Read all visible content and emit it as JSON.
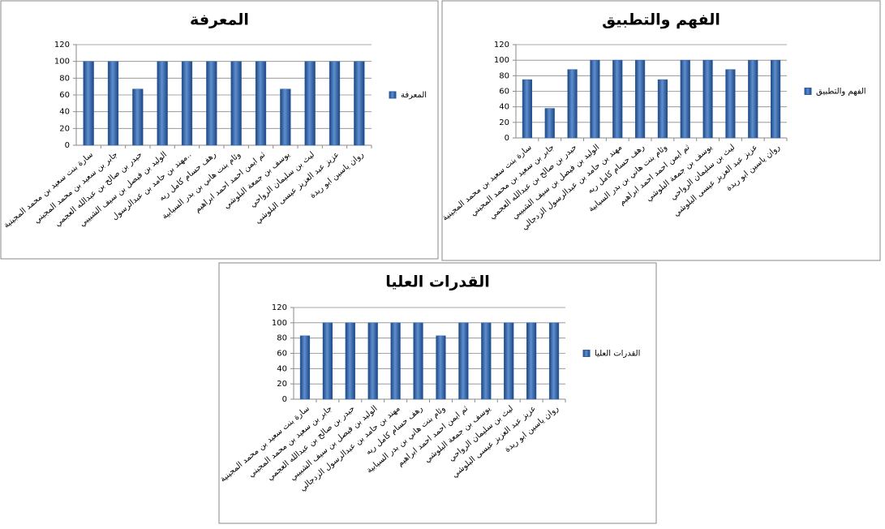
{
  "chart_data": [
    {
      "type": "bar",
      "title": "المعرفة",
      "categories": [
        "سارة بنت سعيد بن محمد المجينية",
        "جابر بن سعيد بن محمد المجيني",
        "حيدر بن صالح بن عبدالله العجمي",
        "الوليد بن فيصل بن سيف الشبيبي",
        "مهند بن حامد بن عبدالرسول..",
        "رهف حسام كامل ريه",
        "وئام بنت هاني بن بدر السيابية",
        "ثم ايمن احمد احمد ابراهيم",
        "يوسف بن جمعة البلوشي",
        "ليث بن سليمان الرواحي",
        "عزيز عبد العزيز عيسى البلوشي",
        "روان ياسين ابو ريدة"
      ],
      "series": [
        {
          "name": "المعرفة",
          "color": "#2a5ea8",
          "values": [
            100,
            100,
            67,
            100,
            100,
            100,
            100,
            100,
            67,
            100,
            100,
            100
          ]
        }
      ],
      "ylim": [
        0,
        120
      ],
      "yticks": [
        0,
        20,
        40,
        60,
        80,
        100,
        120
      ],
      "grid": true,
      "legend": "right"
    },
    {
      "type": "bar",
      "title": "الفهم والتطبيق",
      "categories": [
        "سارة بنت سعيد بن محمد المجينية",
        "جابر بن سعيد بن محمد المجيني",
        "حيدر بن صالح بن عبدالله العجمي",
        "الوليد بن فيصل بن سيف الشبيبي",
        "مهند بن حامد بن عبدالرسول الزدجالي",
        "رهف حسام كامل ريه",
        "وئام بنت هاني بن بدر السيابية",
        "ثم ايمن احمد احمد ابراهيم",
        "يوسف بن جمعة البلوشي",
        "ليث بن سليمان الرواحي",
        "عزيز عبد العزيز عيسى البلوشي",
        "روان ياسين ابو ريدة"
      ],
      "series": [
        {
          "name": "الفهم والتطبيق",
          "color": "#2a5ea8",
          "values": [
            75,
            38,
            88,
            100,
            100,
            100,
            75,
            100,
            100,
            88,
            100,
            100
          ]
        }
      ],
      "ylim": [
        0,
        120
      ],
      "yticks": [
        0,
        20,
        40,
        60,
        80,
        100,
        120
      ],
      "grid": true,
      "legend": "right"
    },
    {
      "type": "bar",
      "title": "القدرات العليا",
      "categories": [
        "سارة بنت سعيد بن محمد المجينية",
        "جابر بن سعيد بن محمد المجيني",
        "حيدر بن صالح بن عبدالله العجمي",
        "الوليد بن فيصل بن سيف الشبيبي",
        "مهند بن حامد بن عبدالرسول الزدجالي",
        "رهف حسام كامل ريه",
        "وئام بنت هاني بن بدر السيابية",
        "ثم ايمن احمد احمد ابراهيم",
        "يوسف بن جمعة البلوشي",
        "ليث بن سليمان الرواحي",
        "عزيز عبد العزيز عيسى البلوشي",
        "روان ياسين ابو ريدة"
      ],
      "series": [
        {
          "name": "القدرات العليا",
          "color": "#2a5ea8",
          "values": [
            83,
            100,
            100,
            100,
            100,
            100,
            83,
            100,
            100,
            100,
            100,
            100
          ]
        }
      ],
      "ylim": [
        0,
        120
      ],
      "yticks": [
        0,
        20,
        40,
        60,
        80,
        100,
        120
      ],
      "grid": true,
      "legend": "right"
    }
  ]
}
